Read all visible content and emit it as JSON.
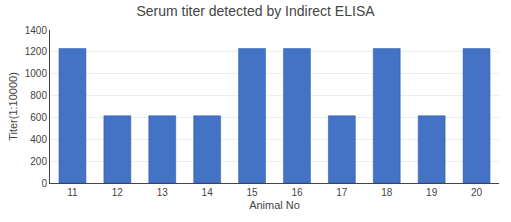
{
  "chart_data": {
    "type": "bar",
    "title": "Serum titer detected by Indirect ELISA",
    "xlabel": "Animal No",
    "ylabel": "Titer(1:10000)",
    "categories": [
      11,
      12,
      13,
      14,
      15,
      16,
      17,
      18,
      19,
      20
    ],
    "values": [
      1230,
      615,
      615,
      615,
      1230,
      1230,
      615,
      1230,
      615,
      1230
    ],
    "color": "#4472C4",
    "ylim": [
      0,
      1400
    ],
    "yticks": [
      0,
      200,
      400,
      600,
      800,
      1000,
      1200,
      1400
    ],
    "grid": "y"
  }
}
